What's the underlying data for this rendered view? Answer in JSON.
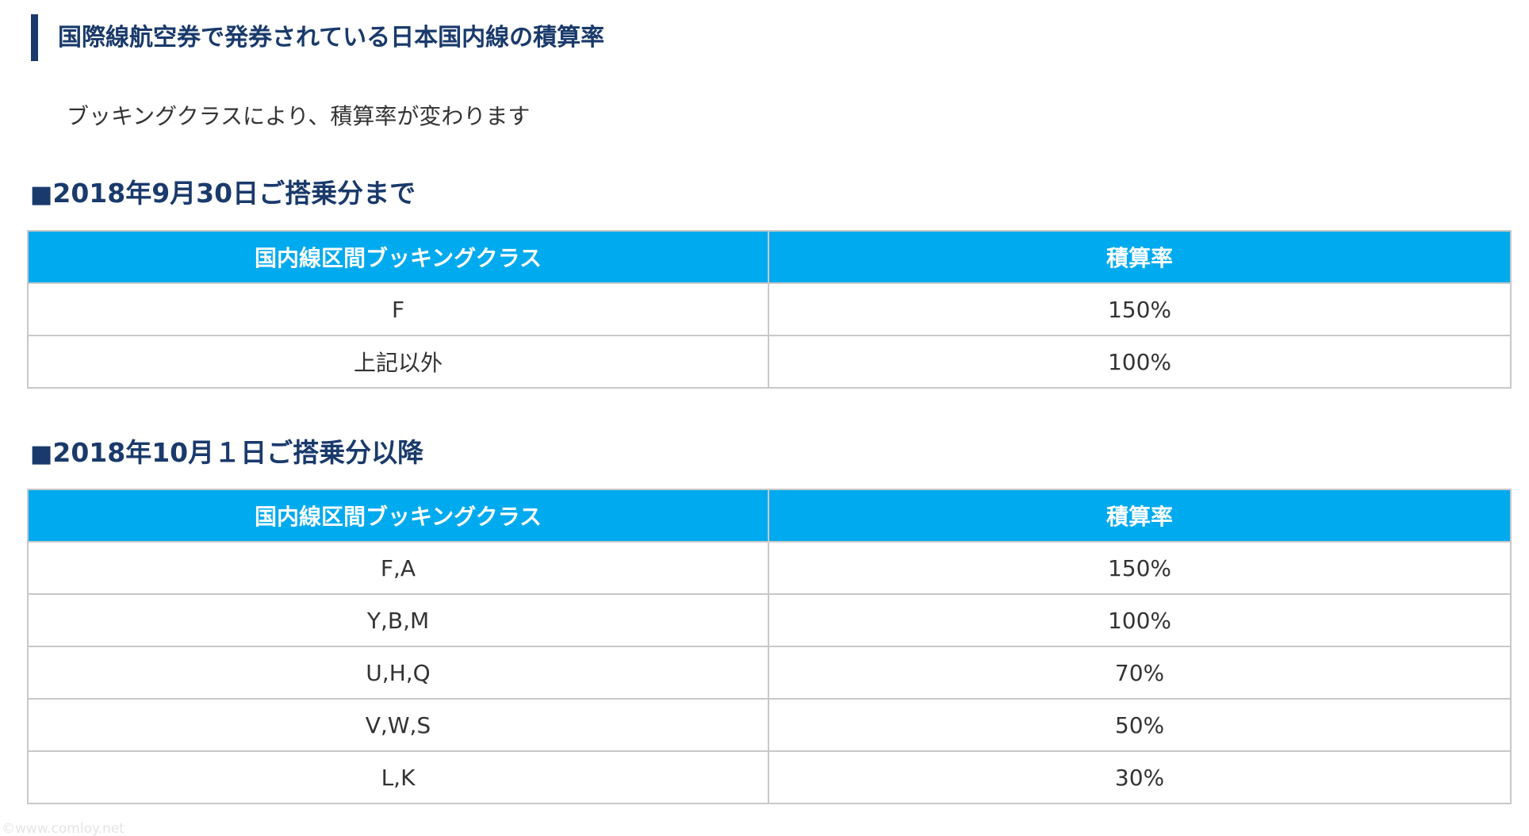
{
  "heading": "国際線航空券で発券されている日本国内線の積算率",
  "intro": "ブッキングクラスにより、積算率が変わります",
  "sections": [
    {
      "square": "■",
      "title": "2018年9月30日ご搭乗分まで",
      "table": {
        "headers": [
          "国内線区間ブッキングクラス",
          "積算率"
        ],
        "rows": [
          [
            "F",
            "150%"
          ],
          [
            "上記以外",
            "100%"
          ]
        ]
      }
    },
    {
      "square": "■",
      "title": "2018年10月１日ご搭乗分以降",
      "table": {
        "headers": [
          "国内線区間ブッキングクラス",
          "積算率"
        ],
        "rows": [
          [
            "F,A",
            "150%"
          ],
          [
            "Y,B,M",
            "100%"
          ],
          [
            "U,H,Q",
            "70%"
          ],
          [
            "V,W,S",
            "50%"
          ],
          [
            "L,K",
            "30%"
          ]
        ]
      }
    }
  ],
  "watermark": "©www.comloy.net",
  "colors": {
    "heading": "#1a3a6b",
    "table_header_bg": "#00aaee",
    "table_header_text": "#ffffff",
    "border": "#c8c8c8"
  }
}
